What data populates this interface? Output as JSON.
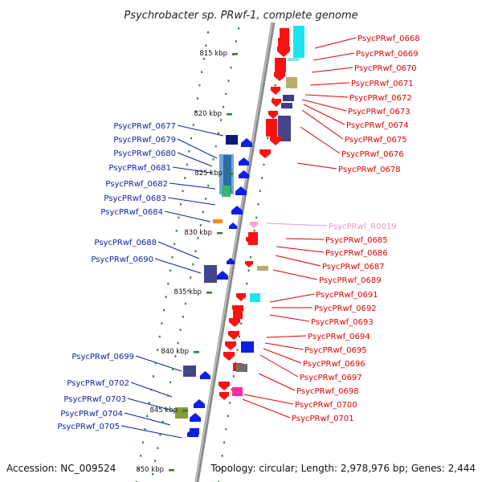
{
  "title": "Psychrobacter sp. PRwf-1, complete genome",
  "footer": {
    "accession": "Accession: NC_009524",
    "summary": "Topology: circular; Length: 2,978,976 bp; Genes: 2,444"
  },
  "colors": {
    "axis": "#8a8a8a",
    "tick": "#2e7d32",
    "forward_label": "#0b1fa8",
    "reverse_label": "#e00000",
    "rna_label": "#f093c8"
  },
  "kbp_ticks": [
    "815 kbp",
    "820 kbp",
    "825 kbp",
    "830 kbp",
    "835 kbp",
    "840 kbp",
    "845 kbp",
    "850 kbp"
  ],
  "left_genes": [
    "PsycPRwf_0677",
    "PsycPRwf_0679",
    "PsycPRwf_0680",
    "PsycPRwf_0681",
    "PsycPRwf_0682",
    "PsycPRwf_0683",
    "PsycPRwf_0684",
    "PsycPRwf_0688",
    "PsycPRwf_0690",
    "PsycPRwf_0699",
    "PsycPRwf_0702",
    "PsycPRwf_0703",
    "PsycPRwf_0704",
    "PsycPRwf_0705"
  ],
  "right_genes": [
    "PsycPRwf_0668",
    "PsycPRwf_0669",
    "PsycPRwf_0670",
    "PsycPRwf_0671",
    "PsycPRwf_0672",
    "PsycPRwf_0673",
    "PsycPRwf_0674",
    "PsycPRwf_0675",
    "PsycPRwf_0676",
    "PsycPRwf_0678",
    "PsycPRwf_R0019",
    "PsycPRwf_0685",
    "PsycPRwf_0686",
    "PsycPRwf_0687",
    "PsycPRwf_0689",
    "PsycPRwf_0691",
    "PsycPRwf_0692",
    "PsycPRwf_0693",
    "PsycPRwf_0694",
    "PsycPRwf_0695",
    "PsycPRwf_0696",
    "PsycPRwf_0697",
    "PsycPRwf_0698",
    "PsycPRwf_0700",
    "PsycPRwf_0701"
  ]
}
